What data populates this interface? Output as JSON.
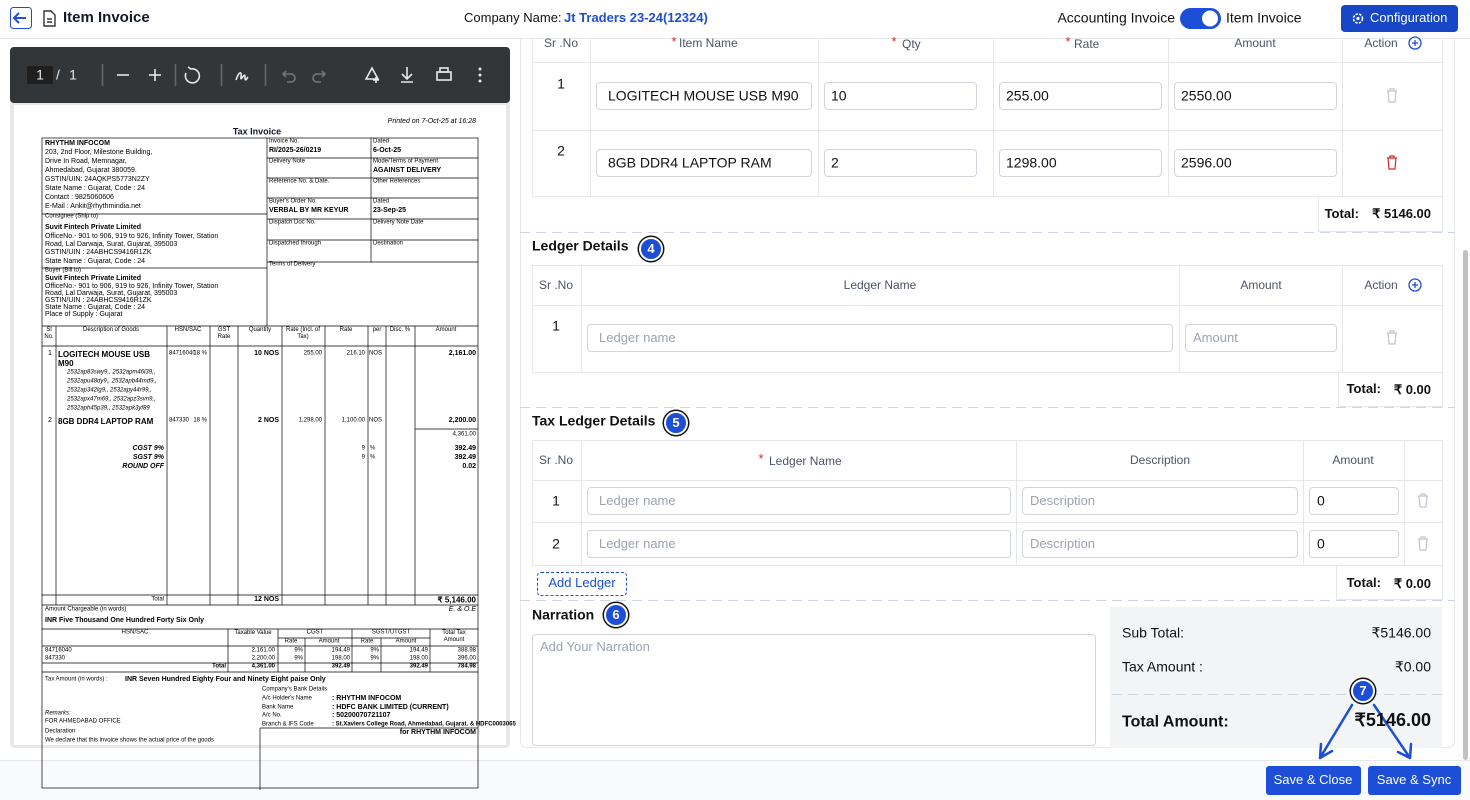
{
  "header": {
    "title": "Item Invoice",
    "company_label": "Company Name:",
    "company": "Jt Traders 23-24(12324)",
    "toggle_left": "Accounting Invoice",
    "toggle_right": "Item Invoice",
    "config": "Configuration"
  },
  "viewer": {
    "page": "1",
    "separator": "/",
    "total": "1"
  },
  "invoice": {
    "printed": "Printed on 7-Oct-25 at 16:28",
    "title": "Tax Invoice",
    "seller": [
      "RHYTHM INFOCOM",
      "203, 2nd Floor, Milestone Building,",
      "Drive In Road, Memnagar,",
      "Ahmedabad, Gujarat 380059.",
      "GSTIN/UIN: 24AQKPS5773N2ZY",
      "State Name :  Gujarat, Code : 24",
      "Contact : 9825060606",
      "E-Mail : Ankit@rhythmindia.net"
    ],
    "consignee": [
      "Consignee (Ship to)",
      "Suvit Fintech Private Limited",
      "OfficeNo.- 901 to 906, 919 to 926, Infinity Tower, Station",
      "Road, Lal Darwaja, Surat, Gujarat, 395003",
      "GSTIN/UIN        :  24ABHCS9416R1ZK",
      "State Name       :  Gujarat, Code : 24"
    ],
    "buyer": [
      "Buyer (Bill to)",
      "Suvit Fintech Private Limited",
      "OfficeNo.- 901 to 906, 919 to 926, Infinity Tower, Station",
      "Road, Lal Darwaja, Surat, Gujarat, 395003",
      "GSTIN/UIN        :  24ABHCS9416R1ZK",
      "State Name       :  Gujarat, Code : 24",
      "Place of Supply  :  Gujarat"
    ],
    "meta": [
      {
        "label": "Invoice No.",
        "value": "RI/2025-26/0219"
      },
      {
        "label": "Dated",
        "value": "6-Oct-25"
      },
      {
        "label": "Delivery Note"
      },
      {
        "label": "Mode/Terms of Payment",
        "value": "AGAINST DELIVERY"
      },
      {
        "label": "Reference No. & Date."
      },
      {
        "label": "Other References"
      },
      {
        "label": "Buyer's Order No.",
        "value": "VERBAL BY MR KEYUR"
      },
      {
        "label": "Dated",
        "value": "23-Sep-25"
      },
      {
        "label": "Dispatch Doc No."
      },
      {
        "label": "Delivery Note Date"
      },
      {
        "label": "Dispatched through"
      },
      {
        "label": "Destination"
      },
      {
        "label": "Terms of Delivery"
      }
    ],
    "columns": [
      "Sl No.",
      "Description of Goods",
      "HSN/SAC",
      "GST Rate",
      "Quantity",
      "Rate (Incl. of Tax)",
      "Rate",
      "per",
      "Disc. %",
      "Amount"
    ],
    "rows": [
      {
        "sl": "1",
        "desc": "LOGITECH MOUSE USB M90",
        "serials": [
          "2532ap83swy9,, 2532apm46l39,,",
          "2532apu48dy9,, 2532apb44md9,,",
          "2532ap342lg9,, 2532apy44r99,,",
          "2532apx47m69,, 2532apz3svn9,,",
          "2532aph45p39,, 2532apk3yf89"
        ],
        "hsn": "84716040",
        "gst": "18 %",
        "qty": "10 NOS",
        "rate_incl": "255.00",
        "rate": "216.10",
        "per": "NOS",
        "amount": "2,161.00"
      },
      {
        "sl": "2",
        "desc": "8GB DDR4 LAPTOP RAM",
        "hsn": "847330",
        "gst": "18 %",
        "qty": "2 NOS",
        "rate_incl": "1,298.00",
        "rate": "1,100.00",
        "per": "NOS",
        "amount": "2,200.00"
      }
    ],
    "subtotal": "4,361.00",
    "taxes": [
      {
        "name": "CGST 9%",
        "rate": "9",
        "per": "%",
        "amount": "392.49"
      },
      {
        "name": "SGST 9%",
        "rate": "9",
        "per": "%",
        "amount": "392.49"
      },
      {
        "name": "ROUND OFF",
        "amount": "0.02"
      }
    ],
    "total_label": "Total",
    "total_qty": "12 NOS",
    "total": "₹ 5,146.00",
    "words_label": "Amount Chargeable (in words)",
    "eoe": "E. & O.E",
    "words": "INR Five Thousand One Hundred Forty Six Only",
    "hsn_headers": [
      "HSN/SAC",
      "Taxable Value",
      "CGST",
      "SGST/UTGST",
      "Total Tax Amount"
    ],
    "hsn_sub": [
      "Rate",
      "Amount",
      "Rate",
      "Amount"
    ],
    "hsn_rows": [
      [
        "84716040",
        "2,161.00",
        "9%",
        "194.49",
        "9%",
        "194.49",
        "388.98"
      ],
      [
        "847330",
        "2,200.00",
        "9%",
        "198.00",
        "9%",
        "198.00",
        "396.00"
      ]
    ],
    "hsn_total": [
      "Total",
      "4,361.00",
      "392.49",
      "392.49",
      "784.98"
    ],
    "tax_words_label": "Tax Amount (in words) :",
    "tax_words": "INR Seven Hundred Eighty Four and Ninety Eight paise Only",
    "bank_label": "Company's Bank Details",
    "bank": [
      [
        "A/c Holder's Name",
        ": RHYTHM INFOCOM"
      ],
      [
        "Bank Name",
        ": HDFC BANK LIMITED (CURRENT)"
      ],
      [
        "A/c No.",
        ": 50200070721107"
      ],
      [
        "Branch & IFS Code",
        ": St.Xaviers College Road, Ahmedabad, Gujarat. & HDFC0003065"
      ]
    ],
    "remarks": "Remarks:",
    "remarks_text": "FOR AHMEDABAD OFFICE",
    "signature": "for RHYTHM INFOCOM",
    "declaration": "Declaration",
    "declaration_text": "We declare that this invoice shows the actual price of the goods"
  },
  "required": "*",
  "items": {
    "headers": {
      "sr": "Sr .No",
      "item": "Item Name",
      "qty": "Qty",
      "rate": "Rate",
      "amount": "Amount",
      "action": "Action"
    },
    "rows": [
      {
        "sr": "1",
        "item": "LOGITECH MOUSE USB M90",
        "qty": "10",
        "rate": "255.00",
        "amount": "2550.00"
      },
      {
        "sr": "2",
        "item": "8GB DDR4 LAPTOP RAM",
        "qty": "2",
        "rate": "1298.00",
        "amount": "2596.00"
      }
    ],
    "total_label": "Total:",
    "total": "₹ 5146.00"
  },
  "ledger": {
    "title": "Ledger Details",
    "badge": "4",
    "headers": {
      "sr": "Sr .No",
      "name": "Ledger Name",
      "amount": "Amount",
      "action": "Action"
    },
    "rows": [
      {
        "sr": "1",
        "name_placeholder": "Ledger name",
        "amount_placeholder": "Amount"
      }
    ],
    "total_label": "Total:",
    "total": "₹ 0.00"
  },
  "tax_ledger": {
    "title": "Tax Ledger Details",
    "badge": "5",
    "headers": {
      "sr": "Sr .No",
      "name": "Ledger Name",
      "description": "Description",
      "amount": "Amount"
    },
    "rows": [
      {
        "sr": "1",
        "name_placeholder": "Ledger name",
        "description_placeholder": "Description",
        "amount": "0"
      },
      {
        "sr": "2",
        "name_placeholder": "Ledger name",
        "description_placeholder": "Description",
        "amount": "0"
      }
    ],
    "add": "Add Ledger",
    "total_label": "Total:",
    "total": "₹ 0.00"
  },
  "narration": {
    "title": "Narration",
    "badge": "6",
    "placeholder": "Add Your Narration"
  },
  "summary": {
    "sub_total_label": "Sub Total:",
    "sub_total": "₹5146.00",
    "tax_label": "Tax Amount :",
    "tax": "₹0.00",
    "total_label": "Total Amount:",
    "total": "₹5146.00",
    "badge": "7"
  },
  "buttons": {
    "save_close": "Save & Close",
    "save_sync": "Save & Sync"
  }
}
